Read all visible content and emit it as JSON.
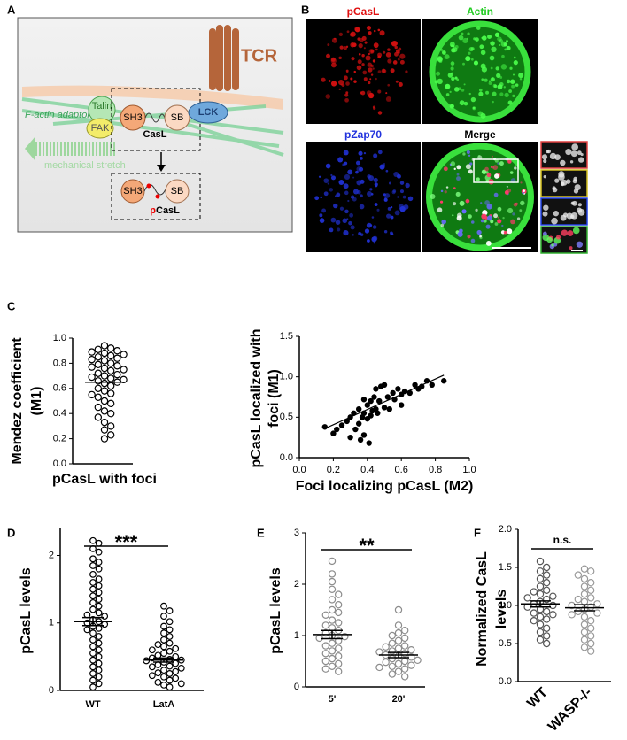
{
  "panel_labels": [
    "A",
    "B",
    "C",
    "D",
    "E",
    "F"
  ],
  "diagram": {
    "tcr": "TCR",
    "adaptors": "F-actin adaptors",
    "talin": "Talin",
    "fak": "FAK",
    "sh3": "SH3",
    "casl": "CasL",
    "sb": "SB",
    "lck": "LCK",
    "stretch": "mechanical stretch",
    "sh3_p": "SH3",
    "sb_p": "SB",
    "p": "p",
    "casl_p": "CasL"
  },
  "images": {
    "pcasl": "pCasL",
    "actin": "Actin",
    "pzap70": "pZap70",
    "merge": "Merge"
  },
  "chart_data": [
    {
      "type": "dot",
      "ylabel": [
        "Mendez coefficient",
        "(M1)"
      ],
      "categories": [
        "pCasL with foci"
      ],
      "values": [
        [
          0.94,
          0.92,
          0.91,
          0.9,
          0.89,
          0.88,
          0.87,
          0.86,
          0.85,
          0.84,
          0.83,
          0.82,
          0.8,
          0.79,
          0.78,
          0.77,
          0.76,
          0.75,
          0.74,
          0.72,
          0.71,
          0.7,
          0.69,
          0.68,
          0.67,
          0.66,
          0.65,
          0.64,
          0.62,
          0.6,
          0.58,
          0.56,
          0.55,
          0.53,
          0.5,
          0.48,
          0.45,
          0.42,
          0.4,
          0.37,
          0.33,
          0.3,
          0.27,
          0.23,
          0.2
        ]
      ],
      "mean": [
        0.65
      ],
      "colors": [
        "#000000"
      ],
      "filled": false,
      "ylim": [
        0,
        1.0
      ],
      "yticks": [
        {
          "value": 0,
          "label": "0.0"
        },
        {
          "value": 0.2,
          "label": "0.2"
        },
        {
          "value": 0.4,
          "label": "0.4"
        },
        {
          "value": 0.6,
          "label": "0.6"
        },
        {
          "value": 0.8,
          "label": "0.8"
        },
        {
          "value": 1.0,
          "label": "1.0"
        }
      ]
    },
    {
      "type": "scatter",
      "ylabel": [
        "pCasL localized with",
        "foci (M1)"
      ],
      "xlabel": "Foci localizing pCasL (M2)",
      "x": [
        0.15,
        0.2,
        0.22,
        0.25,
        0.28,
        0.3,
        0.3,
        0.32,
        0.33,
        0.35,
        0.35,
        0.36,
        0.37,
        0.38,
        0.38,
        0.4,
        0.4,
        0.41,
        0.42,
        0.43,
        0.44,
        0.45,
        0.45,
        0.46,
        0.47,
        0.48,
        0.5,
        0.5,
        0.52,
        0.53,
        0.55,
        0.56,
        0.58,
        0.6,
        0.6,
        0.62,
        0.65,
        0.68,
        0.7,
        0.72,
        0.75,
        0.78,
        0.85,
        0.38,
        0.42
      ],
      "y": [
        0.38,
        0.3,
        0.35,
        0.4,
        0.45,
        0.25,
        0.5,
        0.55,
        0.35,
        0.6,
        0.42,
        0.22,
        0.5,
        0.55,
        0.28,
        0.65,
        0.48,
        0.18,
        0.7,
        0.58,
        0.75,
        0.6,
        0.85,
        0.55,
        0.7,
        0.88,
        0.62,
        0.9,
        0.75,
        0.6,
        0.8,
        0.72,
        0.85,
        0.65,
        0.78,
        0.82,
        0.8,
        0.9,
        0.85,
        0.88,
        0.95,
        0.9,
        0.95,
        0.72,
        0.52
      ],
      "fit_line": {
        "x": [
          0.15,
          0.85
        ],
        "y": [
          0.36,
          1.02
        ]
      },
      "color": "#000000",
      "xlim": [
        0,
        1.0
      ],
      "ylim": [
        0,
        1.5
      ],
      "xticks": [
        {
          "value": 0,
          "label": "0.0"
        },
        {
          "value": 0.2,
          "label": "0.2"
        },
        {
          "value": 0.4,
          "label": "0.4"
        },
        {
          "value": 0.6,
          "label": "0.6"
        },
        {
          "value": 0.8,
          "label": "0.8"
        },
        {
          "value": 1.0,
          "label": "1.0"
        }
      ],
      "yticks": [
        {
          "value": 0,
          "label": "0.0"
        },
        {
          "value": 0.5,
          "label": "0.5"
        },
        {
          "value": 1.0,
          "label": "1.0"
        },
        {
          "value": 1.5,
          "label": "1.5"
        }
      ]
    },
    {
      "type": "dot",
      "ylabel": [
        "pCasL levels"
      ],
      "categories": [
        "WT",
        "LatA"
      ],
      "annotation": "***",
      "values": [
        [
          2.22,
          2.18,
          2.1,
          2.05,
          1.95,
          1.9,
          1.85,
          1.8,
          1.72,
          1.65,
          1.6,
          1.55,
          1.5,
          1.45,
          1.4,
          1.35,
          1.3,
          1.25,
          1.2,
          1.15,
          1.12,
          1.1,
          1.05,
          1.02,
          1,
          0.98,
          0.95,
          0.92,
          0.9,
          0.85,
          0.8,
          0.75,
          0.7,
          0.65,
          0.6,
          0.55,
          0.5,
          0.45,
          0.4,
          0.35,
          0.3,
          0.25,
          0.2,
          0.15,
          0.1,
          0.05
        ],
        [
          1.25,
          1.18,
          1.1,
          1.02,
          0.95,
          0.9,
          0.85,
          0.8,
          0.75,
          0.7,
          0.68,
          0.65,
          0.62,
          0.6,
          0.58,
          0.55,
          0.52,
          0.5,
          0.48,
          0.46,
          0.45,
          0.44,
          0.42,
          0.4,
          0.38,
          0.36,
          0.35,
          0.33,
          0.3,
          0.28,
          0.26,
          0.25,
          0.22,
          0.2,
          0.18,
          0.15,
          0.12,
          0.1,
          0.08,
          0.05
        ]
      ],
      "mean": [
        1.02,
        0.45
      ],
      "sem": [
        0.06,
        0.03
      ],
      "colors": [
        "#000000",
        "#000000"
      ],
      "filled": false,
      "ylim": [
        0,
        2.4
      ],
      "yticks": [
        0,
        1,
        2
      ]
    },
    {
      "type": "dot",
      "ylabel": [
        "pCasL levels"
      ],
      "categories": [
        "5'",
        "20'"
      ],
      "annotation": "**",
      "values": [
        [
          2.45,
          2.2,
          2.05,
          1.9,
          1.8,
          1.7,
          1.6,
          1.5,
          1.45,
          1.4,
          1.3,
          1.25,
          1.2,
          1.15,
          1.1,
          1.05,
          1,
          0.98,
          0.95,
          0.9,
          0.85,
          0.8,
          0.75,
          0.7,
          0.65,
          0.6,
          0.55,
          0.5,
          0.45,
          0.4,
          0.35,
          0.3
        ],
        [
          1.5,
          1.2,
          1.1,
          1.05,
          1,
          0.95,
          0.9,
          0.85,
          0.8,
          0.78,
          0.75,
          0.72,
          0.7,
          0.68,
          0.65,
          0.62,
          0.6,
          0.58,
          0.55,
          0.52,
          0.5,
          0.48,
          0.45,
          0.42,
          0.4,
          0.38,
          0.35,
          0.3,
          0.25,
          0.2
        ]
      ],
      "mean": [
        1.02,
        0.62
      ],
      "sem": [
        0.08,
        0.05
      ],
      "colors": [
        "#8c8c8c",
        "#8c8c8c"
      ],
      "filled": false,
      "ylim": [
        0,
        3
      ],
      "yticks": [
        0,
        1,
        2,
        3
      ]
    },
    {
      "type": "dot",
      "ylabel": [
        "Normalized CasL",
        "levels"
      ],
      "categories": [
        "WT",
        "WASP-/-"
      ],
      "annotation": "n.s.",
      "values": [
        [
          1.58,
          1.5,
          1.45,
          1.4,
          1.35,
          1.3,
          1.25,
          1.2,
          1.18,
          1.15,
          1.12,
          1.1,
          1.08,
          1.05,
          1.02,
          1,
          0.98,
          0.95,
          0.92,
          0.9,
          0.88,
          0.85,
          0.82,
          0.8,
          0.75,
          0.7,
          0.65,
          0.6,
          0.55,
          0.5
        ],
        [
          1.48,
          1.45,
          1.4,
          1.35,
          1.3,
          1.25,
          1.2,
          1.15,
          1.1,
          1.08,
          1.05,
          1.02,
          1,
          0.98,
          0.95,
          0.92,
          0.9,
          0.88,
          0.85,
          0.8,
          0.75,
          0.7,
          0.65,
          0.6,
          0.55,
          0.5,
          0.45,
          0.4
        ]
      ],
      "mean": [
        1.02,
        0.97
      ],
      "sem": [
        0.04,
        0.04
      ],
      "colors": [
        "#555555",
        "#999999"
      ],
      "filled": false,
      "ylim": [
        0,
        2.0
      ],
      "yticks": [
        {
          "value": 0,
          "label": "0.0"
        },
        {
          "value": 0.5,
          "label": "0.5"
        },
        {
          "value": 1.0,
          "label": "1.0"
        },
        {
          "value": 1.5,
          "label": "1.5"
        },
        {
          "value": 2.0,
          "label": "2.0"
        }
      ]
    }
  ]
}
